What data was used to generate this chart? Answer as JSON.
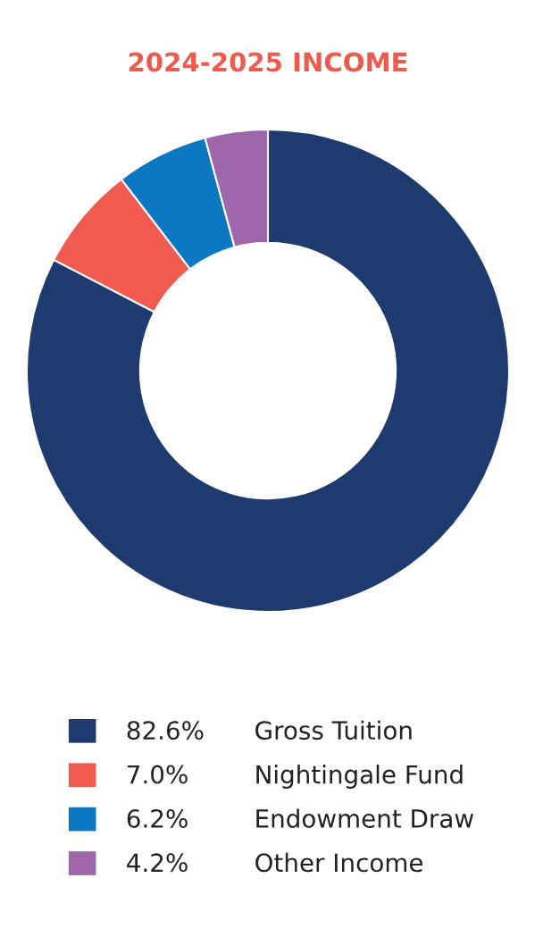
{
  "chart_data": {
    "type": "donut",
    "title": "2024-2025 INCOME",
    "categories": [
      "Gross Tuition",
      "Nightingale Fund",
      "Endowment Draw",
      "Other Income"
    ],
    "values": [
      82.6,
      7.0,
      6.2,
      4.2
    ],
    "value_labels": [
      "82.6%",
      "7.0%",
      "6.2%",
      "4.2%"
    ],
    "colors": [
      "#1f3a6e",
      "#f05a4f",
      "#0b78c1",
      "#9e67ab"
    ],
    "legend": "bottom"
  }
}
